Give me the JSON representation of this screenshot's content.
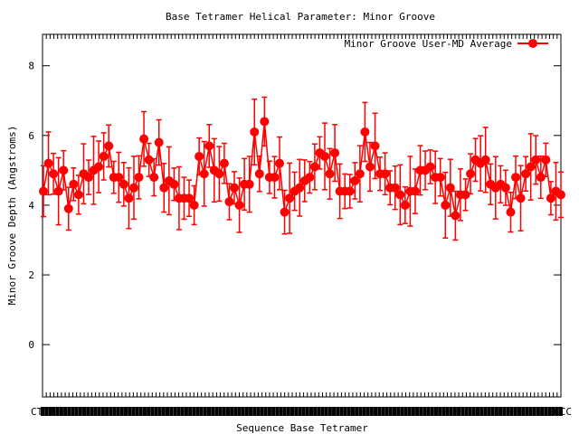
{
  "chart_data": {
    "type": "scatter",
    "title": "Base Tetramer Helical Parameter: Minor Groove",
    "xlabel": "Sequence Base Tetramer",
    "ylabel": "Minor Groove Depth (Angstroms)",
    "ylim": [
      -1.5,
      8.9
    ],
    "yticks": [
      0,
      2,
      4,
      6,
      8
    ],
    "xlim": [
      0,
      137
    ],
    "x_first_label": "CTTT",
    "x_last_label": "GCCC",
    "grid": false,
    "legend_position": "top-right",
    "series": [
      {
        "name": "Minor Groove User-MD Average",
        "color": "#ff0000",
        "values": [
          4.4,
          5.2,
          4.9,
          4.4,
          5.0,
          3.9,
          4.6,
          4.3,
          4.9,
          4.8,
          5.0,
          5.1,
          5.4,
          5.7,
          4.8,
          4.8,
          4.6,
          4.2,
          4.5,
          4.8,
          5.9,
          5.3,
          4.8,
          5.8,
          4.5,
          4.7,
          4.6,
          4.2,
          4.2,
          4.2,
          4.0,
          5.4,
          4.9,
          5.7,
          5.0,
          4.9,
          5.2,
          4.1,
          4.5,
          4.0,
          4.6,
          4.6,
          6.1,
          4.9,
          6.4,
          4.8,
          4.8,
          5.2,
          3.8,
          4.2,
          4.4,
          4.5,
          4.7,
          4.8,
          5.1,
          5.5,
          5.4,
          4.9,
          5.5,
          4.4,
          4.4,
          4.4,
          4.7,
          4.9,
          6.1,
          5.1,
          5.7,
          4.9,
          4.9,
          4.5,
          4.5,
          4.3,
          4.0,
          4.4,
          4.4,
          5.0,
          5.0,
          5.1,
          4.8,
          4.8,
          4.0,
          4.5,
          3.7,
          4.3,
          4.3,
          4.9,
          5.3,
          5.2,
          5.3,
          4.6,
          4.5,
          4.6,
          4.5,
          3.8,
          4.8,
          4.2,
          4.9,
          5.1,
          5.3,
          4.8,
          5.3,
          4.2,
          4.4,
          4.3
        ]
      }
    ]
  }
}
